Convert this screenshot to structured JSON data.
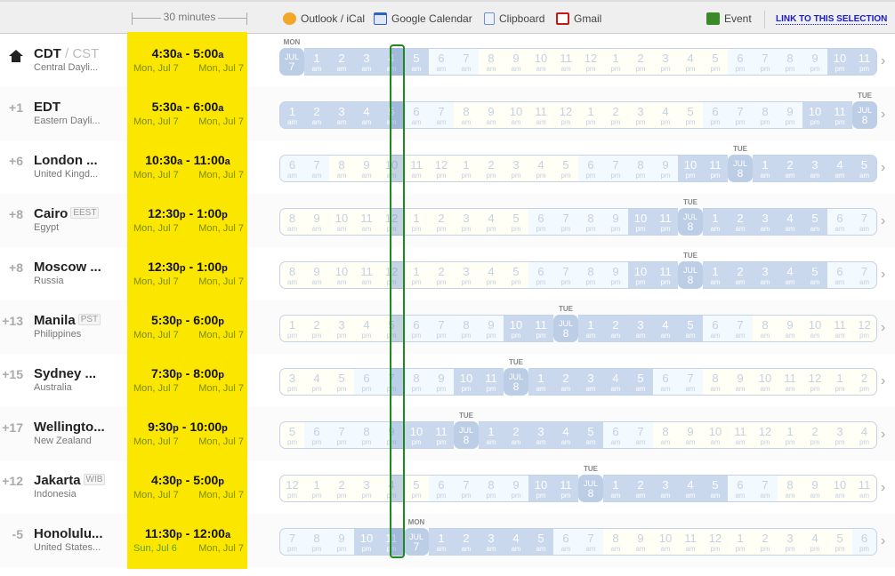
{
  "toolbar": {
    "duration": "30 minutes",
    "outlook": "Outlook / iCal",
    "google": "Google Calendar",
    "clipboard": "Clipboard",
    "gmail": "Gmail",
    "event": "Event",
    "link": "LINK TO THIS SELECTION"
  },
  "selection_cell_index": 4,
  "colors": {
    "highlight": "#fbe600",
    "selection": "#1e8a1e",
    "night": "#c9d8ec",
    "link": "#1a1ad0"
  },
  "rows": [
    {
      "offset": "",
      "home": true,
      "abbr": "CDT",
      "abbr_alt": "/ CST",
      "badge": "",
      "sub": "Central Dayli...",
      "start": "4:30",
      "start_ap": "a",
      "end": "5:00",
      "end_ap": "a",
      "start_date": "Mon, Jul 7",
      "end_date": "Mon, Jul 7",
      "first_hour": 0,
      "day_label": "MON",
      "date_label": [
        "JUL",
        "7"
      ]
    },
    {
      "offset": "+1",
      "abbr": "EDT",
      "badge": "",
      "sub": "Eastern Dayli...",
      "start": "5:30",
      "start_ap": "a",
      "end": "6:00",
      "end_ap": "a",
      "start_date": "Mon, Jul 7",
      "end_date": "Mon, Jul 7",
      "first_hour": 1,
      "day_label": "TUE",
      "date_label": [
        "JUL",
        "8"
      ]
    },
    {
      "offset": "+6",
      "abbr": "London ...",
      "badge": "",
      "sub": "United Kingd...",
      "start": "10:30",
      "start_ap": "a",
      "end": "11:00",
      "end_ap": "a",
      "start_date": "Mon, Jul 7",
      "end_date": "Mon, Jul 7",
      "first_hour": 6,
      "day_label": "TUE",
      "date_label": [
        "JUL",
        "8"
      ]
    },
    {
      "offset": "+8",
      "abbr": "Cairo",
      "badge": "EEST",
      "sub": "Egypt",
      "start": "12:30",
      "start_ap": "p",
      "end": "1:00",
      "end_ap": "p",
      "start_date": "Mon, Jul 7",
      "end_date": "Mon, Jul 7",
      "first_hour": 8,
      "day_label": "TUE",
      "date_label": [
        "JUL",
        "8"
      ]
    },
    {
      "offset": "+8",
      "abbr": "Moscow ...",
      "badge": "",
      "sub": "Russia",
      "start": "12:30",
      "start_ap": "p",
      "end": "1:00",
      "end_ap": "p",
      "start_date": "Mon, Jul 7",
      "end_date": "Mon, Jul 7",
      "first_hour": 8,
      "day_label": "TUE",
      "date_label": [
        "JUL",
        "8"
      ]
    },
    {
      "offset": "+13",
      "abbr": "Manila",
      "badge": "PST",
      "sub": "Philippines",
      "start": "5:30",
      "start_ap": "p",
      "end": "6:00",
      "end_ap": "p",
      "start_date": "Mon, Jul 7",
      "end_date": "Mon, Jul 7",
      "first_hour": 13,
      "day_label": "TUE",
      "date_label": [
        "JUL",
        "8"
      ]
    },
    {
      "offset": "+15",
      "abbr": "Sydney ...",
      "badge": "",
      "sub": "Australia",
      "start": "7:30",
      "start_ap": "p",
      "end": "8:00",
      "end_ap": "p",
      "start_date": "Mon, Jul 7",
      "end_date": "Mon, Jul 7",
      "first_hour": 15,
      "day_label": "TUE",
      "date_label": [
        "JUL",
        "8"
      ]
    },
    {
      "offset": "+17",
      "abbr": "Wellingto...",
      "badge": "",
      "sub": "New Zealand",
      "start": "9:30",
      "start_ap": "p",
      "end": "10:00",
      "end_ap": "p",
      "start_date": "Mon, Jul 7",
      "end_date": "Mon, Jul 7",
      "first_hour": 17,
      "day_label": "TUE",
      "date_label": [
        "JUL",
        "8"
      ]
    },
    {
      "offset": "+12",
      "abbr": "Jakarta",
      "badge": "WIB",
      "sub": "Indonesia",
      "start": "4:30",
      "start_ap": "p",
      "end": "5:00",
      "end_ap": "p",
      "start_date": "Mon, Jul 7",
      "end_date": "Mon, Jul 7",
      "first_hour": 12,
      "day_label": "TUE",
      "date_label": [
        "JUL",
        "8"
      ]
    },
    {
      "offset": "-5",
      "abbr": "Honolulu...",
      "badge": "",
      "sub": "United States...",
      "start": "11:30",
      "start_ap": "p",
      "end": "12:00",
      "end_ap": "a",
      "start_date": "Sun, Jul 6",
      "end_date": "Mon, Jul 7",
      "first_hour": 19,
      "day_label": "MON",
      "date_label": [
        "JUL",
        "7"
      ]
    }
  ]
}
